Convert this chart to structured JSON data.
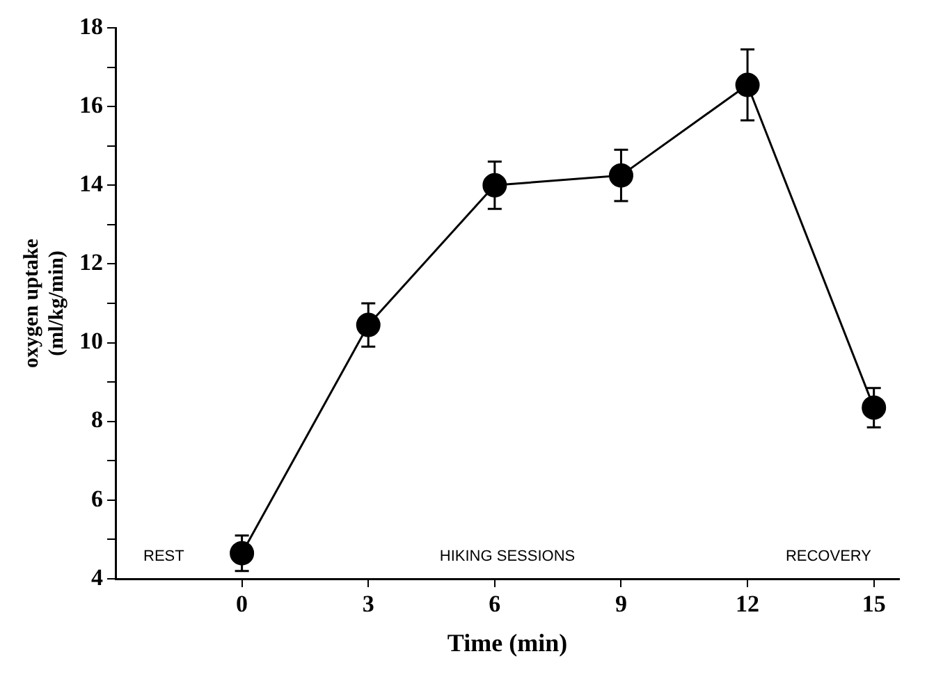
{
  "chart_data": {
    "type": "line",
    "xlabel": "Time (min)",
    "ylabel": "oxygen uptake (ml/kg/min)",
    "x": [
      0,
      3,
      6,
      9,
      12,
      15
    ],
    "series": [
      {
        "color": "#000000",
        "values": [
          4.65,
          10.45,
          14.0,
          14.25,
          16.55,
          8.35
        ],
        "errors": [
          0.45,
          0.55,
          0.6,
          0.65,
          0.9,
          0.5
        ]
      }
    ],
    "xlim": [
      -3,
      15.6
    ],
    "xticks": [
      0,
      3,
      6,
      9,
      12,
      15
    ],
    "ylim": [
      4,
      18
    ],
    "yticks": [
      4,
      {
        "value": 5,
        "label": null
      },
      6,
      {
        "value": 7,
        "label": null
      },
      8,
      {
        "value": 9,
        "label": null
      },
      10,
      {
        "value": 11,
        "label": null
      },
      12,
      {
        "value": 13,
        "label": null
      },
      14,
      {
        "value": 15,
        "label": null
      },
      16,
      {
        "value": 17,
        "label": null
      },
      18
    ],
    "grid": false,
    "legend": false,
    "marker": "circle",
    "line_style": "solid",
    "annotations": [
      "REST",
      "HIKING SESSIONS",
      "RECOVERY"
    ]
  }
}
